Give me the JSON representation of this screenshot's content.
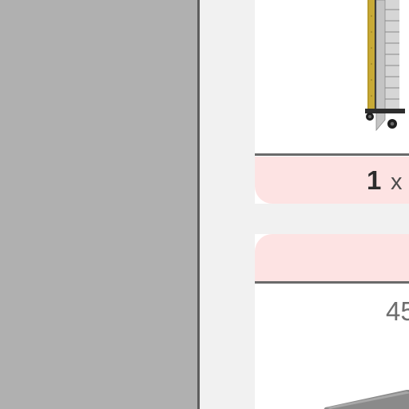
{
  "cart_item": {
    "quantity": "1",
    "times_symbol": "x",
    "partial_value": "45"
  },
  "icons": {
    "product_image": "tool-cabinet-image",
    "bottom_image": "product-image-partial"
  },
  "colors": {
    "left_panel": "#b0b0b0",
    "card_background": "#fde3e3",
    "divider": "#6a6a6a"
  }
}
